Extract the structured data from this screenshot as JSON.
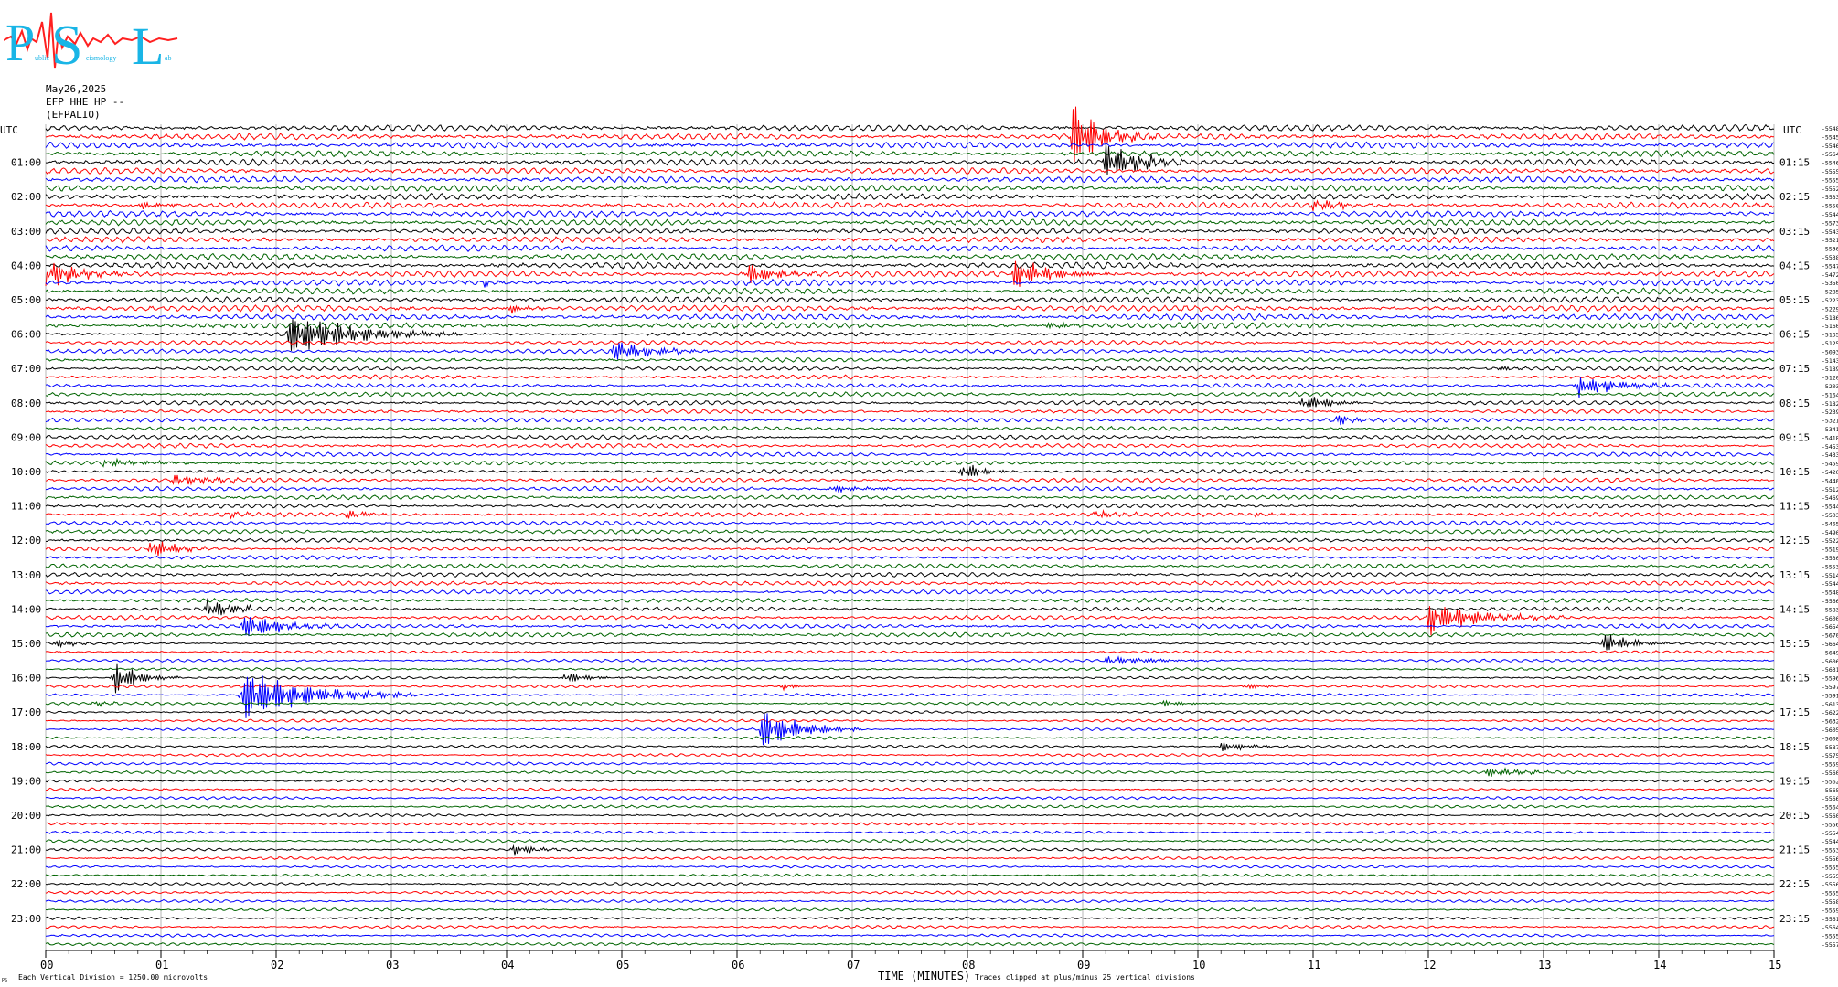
{
  "logo": {
    "letters": [
      "P",
      "S",
      "L"
    ],
    "small_words": [
      "ublic",
      "eismology",
      "ab"
    ]
  },
  "header": {
    "date": "May26,2025",
    "station": "EFP HHE HP --",
    "code": "(EFPALIO)"
  },
  "axis": {
    "left_unit": "UTC",
    "right_unit": "UTC",
    "left_hours": [
      "01:00",
      "02:00",
      "03:00",
      "04:00",
      "05:00",
      "06:00",
      "07:00",
      "08:00",
      "09:00",
      "10:00",
      "11:00",
      "12:00",
      "13:00",
      "14:00",
      "15:00",
      "16:00",
      "17:00",
      "18:00",
      "19:00",
      "20:00",
      "21:00",
      "22:00",
      "23:00"
    ],
    "right_hours": [
      "01:15",
      "02:15",
      "03:15",
      "04:15",
      "05:15",
      "06:15",
      "07:15",
      "08:15",
      "09:15",
      "10:15",
      "11:15",
      "12:15",
      "13:15",
      "14:15",
      "15:15",
      "16:15",
      "17:15",
      "18:15",
      "19:15",
      "20:15",
      "21:15",
      "22:15",
      "23:15"
    ],
    "x_ticks": [
      "00",
      "01",
      "02",
      "03",
      "04",
      "05",
      "06",
      "07",
      "08",
      "09",
      "10",
      "11",
      "12",
      "13",
      "14",
      "15"
    ],
    "x_label": "TIME (MINUTES)"
  },
  "footer": {
    "left_note": "Each Vertical Division = 1250.00 microvolts",
    "clip_note": "Traces clipped at plus/minus 25 vertical divisions",
    "corner_mark": "PS"
  },
  "colors": {
    "black": "#000000",
    "red": "#ff0000",
    "blue": "#0000ff",
    "green": "#006400",
    "grid": "#999999"
  },
  "chart_data": {
    "type": "line",
    "x_range_minutes": [
      0,
      15
    ],
    "rows": 96,
    "rows_per_hour": 4,
    "color_cycle": [
      "black",
      "red",
      "blue",
      "green"
    ],
    "trace_offsets": [
      "-5548",
      "-5545",
      "-5546",
      "-5564",
      "-5546",
      "-5555",
      "-5555",
      "-5552",
      "-5533",
      "-5550",
      "-5544",
      "-5573",
      "-5543",
      "-5521",
      "-5536",
      "-5538",
      "-5547",
      "-5472",
      "-5350",
      "-5285",
      "-5223",
      "-5229",
      "-5186",
      "-5160",
      "-5135",
      "-5125",
      "-5093",
      "-5143",
      "-5189",
      "-5120",
      "-5203",
      "-5164",
      "-5182",
      "-5239",
      "-5321",
      "-5341",
      "-5418",
      "-5453",
      "-5433",
      "-5459",
      "-5420",
      "-5440",
      "-5512",
      "-5469",
      "-5544",
      "-5503",
      "-5465",
      "-5490",
      "-5522",
      "-5519",
      "-5530",
      "-5553",
      "-5514",
      "-5544",
      "-5548",
      "-5566",
      "-5583",
      "-5600",
      "-5654",
      "-5670",
      "-5664",
      "-5649",
      "-5606",
      "-5631",
      "-5596",
      "-5597",
      "-5591",
      "-5613",
      "-5622",
      "-5632",
      "-5605",
      "-5608",
      "-5587",
      "-5575",
      "-5559",
      "-5560",
      "-5562",
      "-5565",
      "-5566",
      "-5564",
      "-5560",
      "-5556",
      "-5554",
      "-5544",
      "-5553",
      "-5556",
      "-5555",
      "-5555",
      "-5556",
      "-5555",
      "-5558",
      "-5559",
      "-5561",
      "-5564",
      "-5555",
      "-5557"
    ],
    "events": [
      {
        "row": 1,
        "minute": 8.9,
        "amp": 35,
        "len": 0.25
      },
      {
        "row": 4,
        "minute": 9.2,
        "amp": 22,
        "len": 0.25
      },
      {
        "row": 9,
        "minute": 0.8,
        "amp": 4,
        "len": 0.2
      },
      {
        "row": 9,
        "minute": 11.0,
        "amp": 5,
        "len": 0.3
      },
      {
        "row": 17,
        "minute": 0.0,
        "amp": 14,
        "len": 0.3
      },
      {
        "row": 17,
        "minute": 6.1,
        "amp": 14,
        "len": 0.2
      },
      {
        "row": 17,
        "minute": 8.4,
        "amp": 16,
        "len": 0.3
      },
      {
        "row": 18,
        "minute": 3.8,
        "amp": 4,
        "len": 0.1
      },
      {
        "row": 21,
        "minute": 4.0,
        "amp": 6,
        "len": 0.15
      },
      {
        "row": 24,
        "minute": 2.1,
        "amp": 24,
        "len": 0.5
      },
      {
        "row": 26,
        "minute": 4.9,
        "amp": 12,
        "len": 0.3
      },
      {
        "row": 23,
        "minute": 8.7,
        "amp": 5,
        "len": 0.15
      },
      {
        "row": 28,
        "minute": 12.6,
        "amp": 4,
        "len": 0.15
      },
      {
        "row": 30,
        "minute": 13.3,
        "amp": 14,
        "len": 0.3
      },
      {
        "row": 32,
        "minute": 10.9,
        "amp": 10,
        "len": 0.2
      },
      {
        "row": 34,
        "minute": 11.2,
        "amp": 6,
        "len": 0.15
      },
      {
        "row": 39,
        "minute": 0.5,
        "amp": 3,
        "len": 0.5
      },
      {
        "row": 40,
        "minute": 7.95,
        "amp": 10,
        "len": 0.15
      },
      {
        "row": 41,
        "minute": 1.1,
        "amp": 6,
        "len": 0.3
      },
      {
        "row": 42,
        "minute": 6.8,
        "amp": 4,
        "len": 0.3
      },
      {
        "row": 45,
        "minute": 1.6,
        "amp": 3,
        "len": 0.1
      },
      {
        "row": 45,
        "minute": 2.6,
        "amp": 6,
        "len": 0.15
      },
      {
        "row": 45,
        "minute": 9.1,
        "amp": 5,
        "len": 0.15
      },
      {
        "row": 45,
        "minute": 10.5,
        "amp": 3,
        "len": 0.1
      },
      {
        "row": 49,
        "minute": 0.9,
        "amp": 12,
        "len": 0.2
      },
      {
        "row": 56,
        "minute": 1.4,
        "amp": 12,
        "len": 0.2
      },
      {
        "row": 58,
        "minute": 1.7,
        "amp": 14,
        "len": 0.3
      },
      {
        "row": 57,
        "minute": 12.0,
        "amp": 16,
        "len": 0.4
      },
      {
        "row": 60,
        "minute": 0.1,
        "amp": 6,
        "len": 0.1
      },
      {
        "row": 60,
        "minute": 13.5,
        "amp": 14,
        "len": 0.2
      },
      {
        "row": 64,
        "minute": 0.6,
        "amp": 18,
        "len": 0.2
      },
      {
        "row": 64,
        "minute": 4.5,
        "amp": 6,
        "len": 0.2
      },
      {
        "row": 62,
        "minute": 9.2,
        "amp": 4,
        "len": 0.4
      },
      {
        "row": 66,
        "minute": 1.7,
        "amp": 28,
        "len": 0.5
      },
      {
        "row": 65,
        "minute": 6.4,
        "amp": 5,
        "len": 0.1
      },
      {
        "row": 65,
        "minute": 10.4,
        "amp": 5,
        "len": 0.1
      },
      {
        "row": 67,
        "minute": 0.4,
        "amp": 4,
        "len": 0.1
      },
      {
        "row": 67,
        "minute": 9.7,
        "amp": 3,
        "len": 0.2
      },
      {
        "row": 70,
        "minute": 6.2,
        "amp": 22,
        "len": 0.3
      },
      {
        "row": 72,
        "minute": 10.2,
        "amp": 6,
        "len": 0.2
      },
      {
        "row": 75,
        "minute": 12.5,
        "amp": 5,
        "len": 0.3
      },
      {
        "row": 84,
        "minute": 4.05,
        "amp": 6,
        "len": 0.2
      }
    ]
  }
}
